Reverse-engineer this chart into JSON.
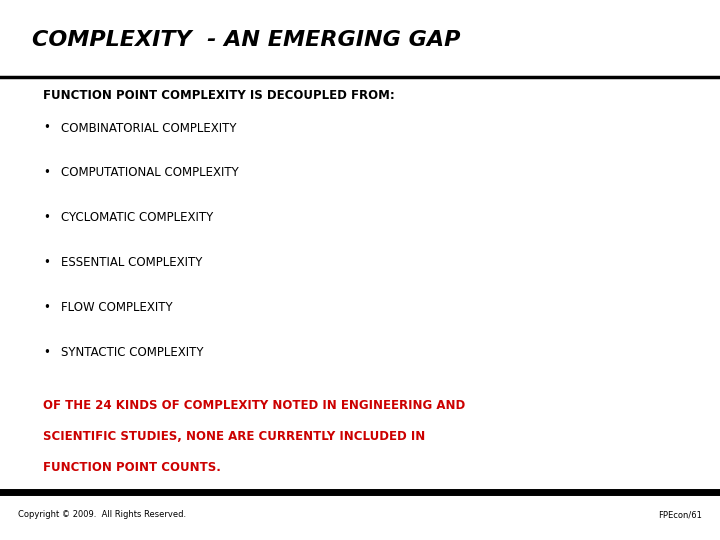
{
  "title": "COMPLEXITY  - AN EMERGING GAP",
  "subtitle": "FUNCTION POINT COMPLEXITY IS DECOUPLED FROM:",
  "bullets": [
    "COMBINATORIAL COMPLEXITY",
    "COMPUTATIONAL COMPLEXITY",
    "CYCLOMATIC COMPLEXITY",
    "ESSENTIAL COMPLEXITY",
    "FLOW COMPLEXITY",
    "SYNTACTIC COMPLEXITY"
  ],
  "footer_line1": "OF THE 24 KINDS OF COMPLEXITY NOTED IN ENGINEERING AND",
  "footer_line2": "SCIENTIFIC STUDIES, NONE ARE CURRENTLY INCLUDED IN",
  "footer_line3": "FUNCTION POINT COUNTS.",
  "copyright": "Copyright © 2009.  All Rights Reserved.",
  "page_ref": "FPEcon/61",
  "bg_color": "#ffffff",
  "title_color": "#000000",
  "subtitle_color": "#000000",
  "bullet_color": "#000000",
  "footer_color": "#cc0000",
  "copyright_color": "#000000",
  "line_color": "#000000",
  "title_fontsize": 16,
  "subtitle_fontsize": 8.5,
  "bullet_fontsize": 8.5,
  "footer_fontsize": 8.5,
  "copyright_fontsize": 6
}
